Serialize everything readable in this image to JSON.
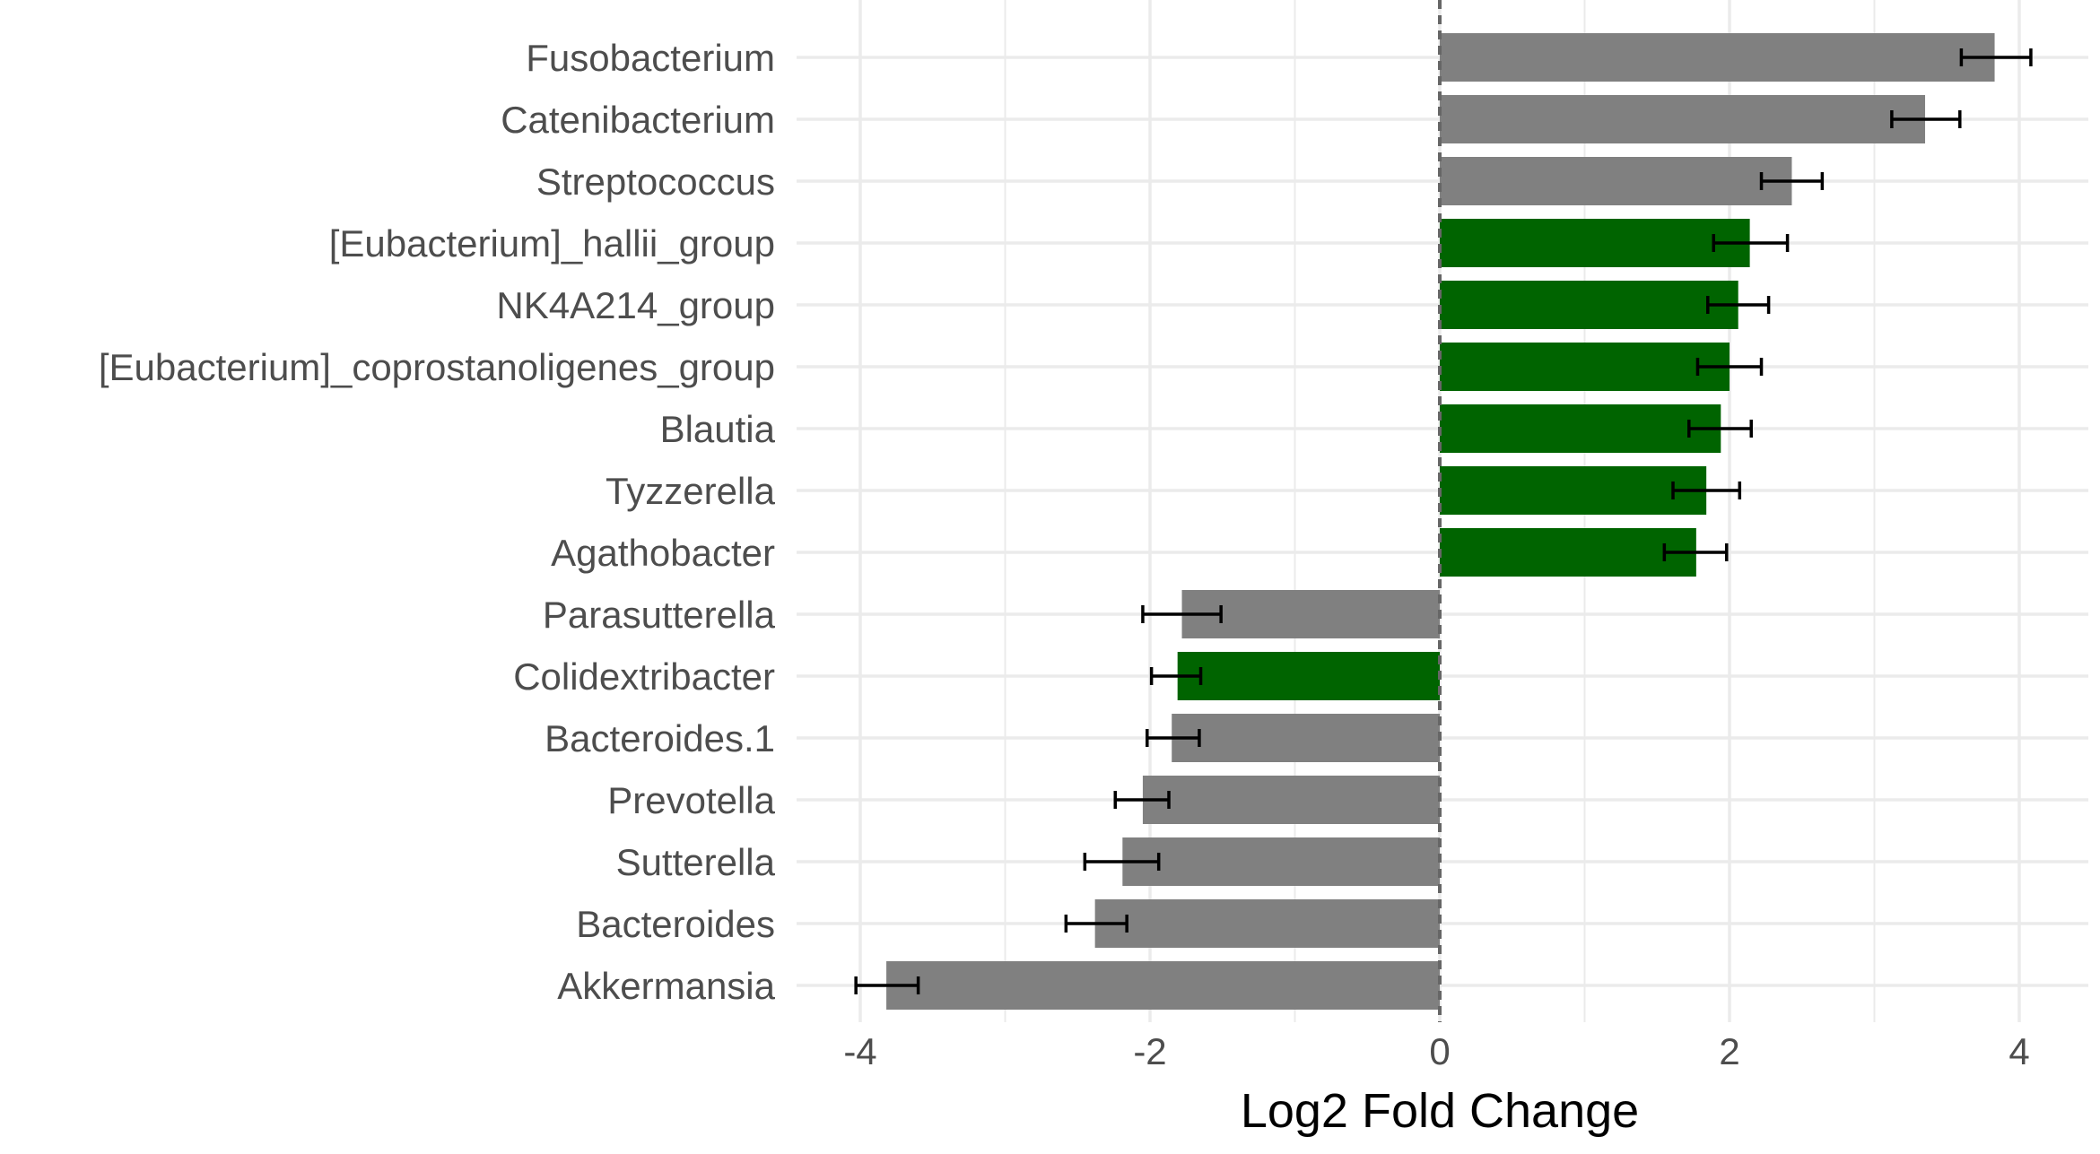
{
  "chart_data": {
    "type": "bar",
    "orientation": "horizontal",
    "xlabel": "Log2 Fold Change",
    "ylabel": "",
    "xlim": [
      -4.3,
      4.5
    ],
    "xticks": [
      -4,
      -2,
      0,
      2,
      4
    ],
    "xtick_labels": [
      "-4",
      "-2",
      "0",
      "2",
      "4"
    ],
    "grid": true,
    "legend": "none",
    "reference_line": {
      "x": 0,
      "style": "dashed"
    },
    "colors": {
      "green": "#006400",
      "gray": "#808080",
      "error_bar": "#000000",
      "grid": "#ebebeb",
      "reference": "#666666"
    },
    "categories": [
      "Fusobacterium",
      "Catenibacterium",
      "Streptococcus",
      "[Eubacterium]_hallii_group",
      "NK4A214_group",
      "[Eubacterium]_coprostanoligenes_group",
      "Blautia",
      "Tyzzerella",
      "Agathobacter",
      "Parasutterella",
      "Colidextribacter",
      "Bacteroides.1",
      "Prevotella",
      "Sutterella",
      "Bacteroides",
      "Akkermansia"
    ],
    "values": [
      3.83,
      3.35,
      2.43,
      2.14,
      2.06,
      2.0,
      1.94,
      1.84,
      1.77,
      -1.78,
      -1.81,
      -1.85,
      -2.05,
      -2.19,
      -2.38,
      -3.82
    ],
    "error_low": [
      3.6,
      3.12,
      2.22,
      1.89,
      1.85,
      1.78,
      1.72,
      1.61,
      1.55,
      -2.05,
      -1.99,
      -2.02,
      -2.24,
      -2.45,
      -2.58,
      -4.03
    ],
    "error_high": [
      4.08,
      3.59,
      2.64,
      2.4,
      2.27,
      2.22,
      2.15,
      2.07,
      1.98,
      -1.51,
      -1.65,
      -1.66,
      -1.87,
      -1.94,
      -2.16,
      -3.6
    ],
    "bar_colors": [
      "gray",
      "gray",
      "gray",
      "green",
      "green",
      "green",
      "green",
      "green",
      "green",
      "gray",
      "green",
      "gray",
      "gray",
      "gray",
      "gray",
      "gray"
    ]
  }
}
